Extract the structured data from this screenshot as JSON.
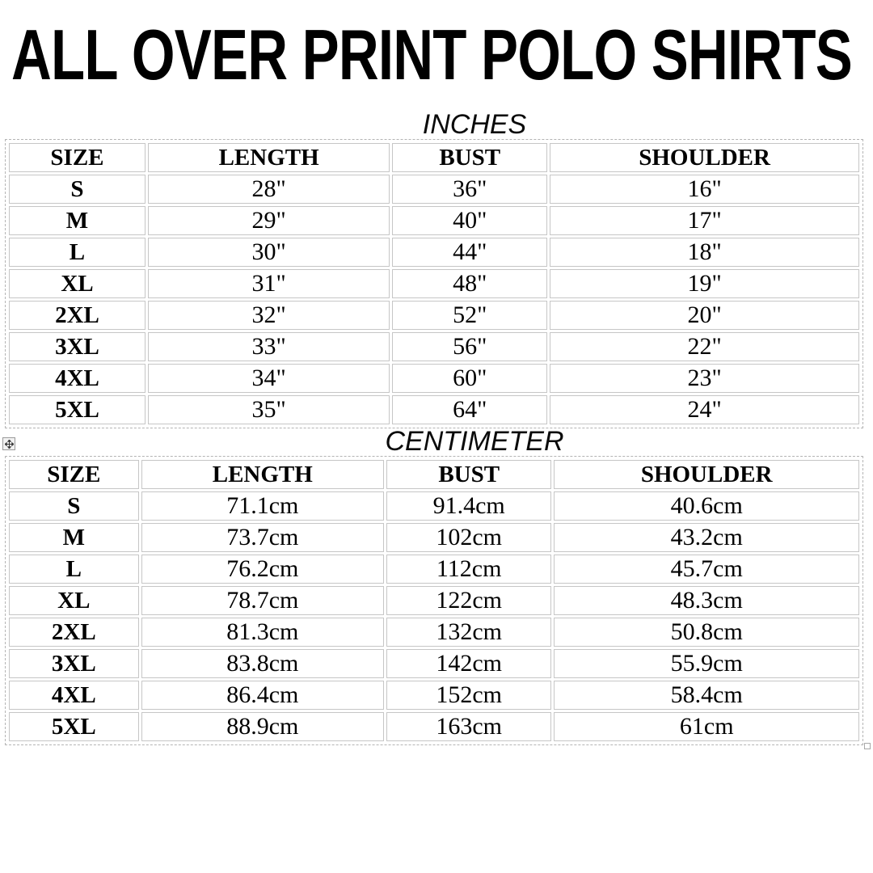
{
  "title": "ALL OVER PRINT POLO SHIRTS",
  "sections": [
    {
      "label": "INCHES",
      "headers": [
        "SIZE",
        "LENGTH",
        "BUST",
        "SHOULDER"
      ],
      "rows": [
        [
          "S",
          "28\"",
          "36\"",
          "16\""
        ],
        [
          "M",
          "29\"",
          "40\"",
          "17\""
        ],
        [
          "L",
          "30\"",
          "44\"",
          "18\""
        ],
        [
          "XL",
          "31\"",
          "48\"",
          "19\""
        ],
        [
          "2XL",
          "32\"",
          "52\"",
          "20\""
        ],
        [
          "3XL",
          "33\"",
          "56\"",
          "22\""
        ],
        [
          "4XL",
          "34\"",
          "60\"",
          "23\""
        ],
        [
          "5XL",
          "35\"",
          "64\"",
          "24\""
        ]
      ]
    },
    {
      "label": "CENTIMETER",
      "headers": [
        "SIZE",
        "LENGTH",
        "BUST",
        "SHOULDER"
      ],
      "rows": [
        [
          "S",
          "71.1cm",
          "91.4cm",
          "40.6cm"
        ],
        [
          "M",
          "73.7cm",
          "102cm",
          "43.2cm"
        ],
        [
          "L",
          "76.2cm",
          "112cm",
          "45.7cm"
        ],
        [
          "XL",
          "78.7cm",
          "122cm",
          "48.3cm"
        ],
        [
          "2XL",
          "81.3cm",
          "132cm",
          "50.8cm"
        ],
        [
          "3XL",
          "83.8cm",
          "142cm",
          "55.9cm"
        ],
        [
          "4XL",
          "86.4cm",
          "152cm",
          "58.4cm"
        ],
        [
          "5XL",
          "88.9cm",
          "163cm",
          "61cm"
        ]
      ]
    }
  ],
  "icons": {
    "move_handle": "table-move-handle-icon",
    "resize_handle": "table-resize-handle"
  },
  "colors": {
    "background": "#ffffff",
    "text": "#000000",
    "cell_border": "#c6c6c6",
    "table_outline_dashed": "#b4b4b4",
    "handle_border": "#9a9a9a"
  }
}
